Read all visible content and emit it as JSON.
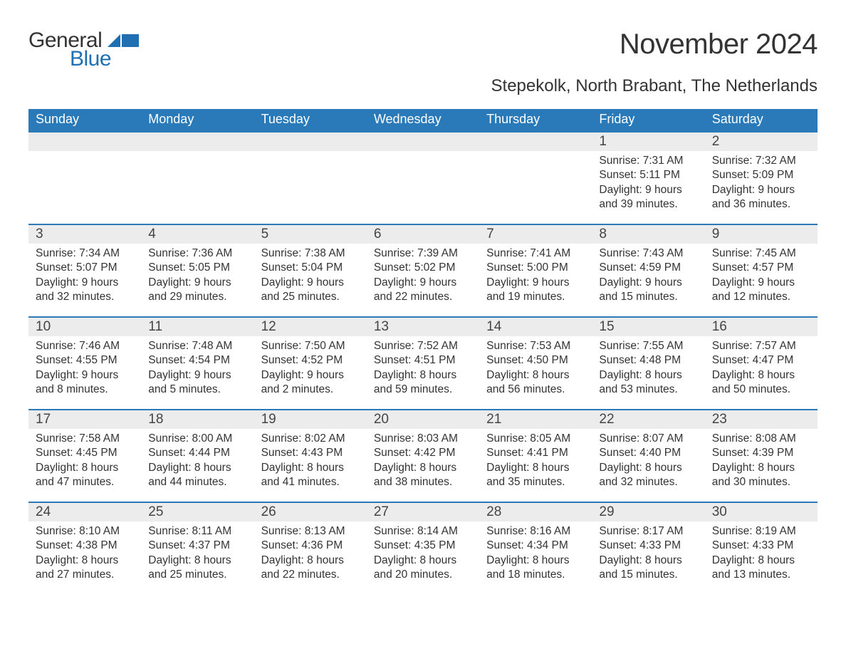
{
  "brand": {
    "name1": "General",
    "name2": "Blue",
    "color": "#1f6fb2",
    "logo_fill": "#1f6fb2"
  },
  "title": "November 2024",
  "location": "Stepekolk, North Brabant, The Netherlands",
  "colors": {
    "header_bg": "#2a7ab9",
    "header_text": "#ffffff",
    "daynum_bg": "#ececec",
    "border": "#2a7ab9",
    "text": "#333333",
    "page_bg": "#ffffff"
  },
  "typography": {
    "title_fontsize": 40,
    "location_fontsize": 24,
    "weekday_fontsize": 18,
    "daynum_fontsize": 19,
    "body_fontsize": 15.5
  },
  "weekdays": [
    "Sunday",
    "Monday",
    "Tuesday",
    "Wednesday",
    "Thursday",
    "Friday",
    "Saturday"
  ],
  "labels": {
    "sunrise": "Sunrise:",
    "sunset": "Sunset:",
    "daylight": "Daylight:"
  },
  "weeks": [
    [
      null,
      null,
      null,
      null,
      null,
      {
        "day": "1",
        "sunrise": "7:31 AM",
        "sunset": "5:11 PM",
        "daylight": "9 hours and 39 minutes."
      },
      {
        "day": "2",
        "sunrise": "7:32 AM",
        "sunset": "5:09 PM",
        "daylight": "9 hours and 36 minutes."
      }
    ],
    [
      {
        "day": "3",
        "sunrise": "7:34 AM",
        "sunset": "5:07 PM",
        "daylight": "9 hours and 32 minutes."
      },
      {
        "day": "4",
        "sunrise": "7:36 AM",
        "sunset": "5:05 PM",
        "daylight": "9 hours and 29 minutes."
      },
      {
        "day": "5",
        "sunrise": "7:38 AM",
        "sunset": "5:04 PM",
        "daylight": "9 hours and 25 minutes."
      },
      {
        "day": "6",
        "sunrise": "7:39 AM",
        "sunset": "5:02 PM",
        "daylight": "9 hours and 22 minutes."
      },
      {
        "day": "7",
        "sunrise": "7:41 AM",
        "sunset": "5:00 PM",
        "daylight": "9 hours and 19 minutes."
      },
      {
        "day": "8",
        "sunrise": "7:43 AM",
        "sunset": "4:59 PM",
        "daylight": "9 hours and 15 minutes."
      },
      {
        "day": "9",
        "sunrise": "7:45 AM",
        "sunset": "4:57 PM",
        "daylight": "9 hours and 12 minutes."
      }
    ],
    [
      {
        "day": "10",
        "sunrise": "7:46 AM",
        "sunset": "4:55 PM",
        "daylight": "9 hours and 8 minutes."
      },
      {
        "day": "11",
        "sunrise": "7:48 AM",
        "sunset": "4:54 PM",
        "daylight": "9 hours and 5 minutes."
      },
      {
        "day": "12",
        "sunrise": "7:50 AM",
        "sunset": "4:52 PM",
        "daylight": "9 hours and 2 minutes."
      },
      {
        "day": "13",
        "sunrise": "7:52 AM",
        "sunset": "4:51 PM",
        "daylight": "8 hours and 59 minutes."
      },
      {
        "day": "14",
        "sunrise": "7:53 AM",
        "sunset": "4:50 PM",
        "daylight": "8 hours and 56 minutes."
      },
      {
        "day": "15",
        "sunrise": "7:55 AM",
        "sunset": "4:48 PM",
        "daylight": "8 hours and 53 minutes."
      },
      {
        "day": "16",
        "sunrise": "7:57 AM",
        "sunset": "4:47 PM",
        "daylight": "8 hours and 50 minutes."
      }
    ],
    [
      {
        "day": "17",
        "sunrise": "7:58 AM",
        "sunset": "4:45 PM",
        "daylight": "8 hours and 47 minutes."
      },
      {
        "day": "18",
        "sunrise": "8:00 AM",
        "sunset": "4:44 PM",
        "daylight": "8 hours and 44 minutes."
      },
      {
        "day": "19",
        "sunrise": "8:02 AM",
        "sunset": "4:43 PM",
        "daylight": "8 hours and 41 minutes."
      },
      {
        "day": "20",
        "sunrise": "8:03 AM",
        "sunset": "4:42 PM",
        "daylight": "8 hours and 38 minutes."
      },
      {
        "day": "21",
        "sunrise": "8:05 AM",
        "sunset": "4:41 PM",
        "daylight": "8 hours and 35 minutes."
      },
      {
        "day": "22",
        "sunrise": "8:07 AM",
        "sunset": "4:40 PM",
        "daylight": "8 hours and 32 minutes."
      },
      {
        "day": "23",
        "sunrise": "8:08 AM",
        "sunset": "4:39 PM",
        "daylight": "8 hours and 30 minutes."
      }
    ],
    [
      {
        "day": "24",
        "sunrise": "8:10 AM",
        "sunset": "4:38 PM",
        "daylight": "8 hours and 27 minutes."
      },
      {
        "day": "25",
        "sunrise": "8:11 AM",
        "sunset": "4:37 PM",
        "daylight": "8 hours and 25 minutes."
      },
      {
        "day": "26",
        "sunrise": "8:13 AM",
        "sunset": "4:36 PM",
        "daylight": "8 hours and 22 minutes."
      },
      {
        "day": "27",
        "sunrise": "8:14 AM",
        "sunset": "4:35 PM",
        "daylight": "8 hours and 20 minutes."
      },
      {
        "day": "28",
        "sunrise": "8:16 AM",
        "sunset": "4:34 PM",
        "daylight": "8 hours and 18 minutes."
      },
      {
        "day": "29",
        "sunrise": "8:17 AM",
        "sunset": "4:33 PM",
        "daylight": "8 hours and 15 minutes."
      },
      {
        "day": "30",
        "sunrise": "8:19 AM",
        "sunset": "4:33 PM",
        "daylight": "8 hours and 13 minutes."
      }
    ]
  ]
}
